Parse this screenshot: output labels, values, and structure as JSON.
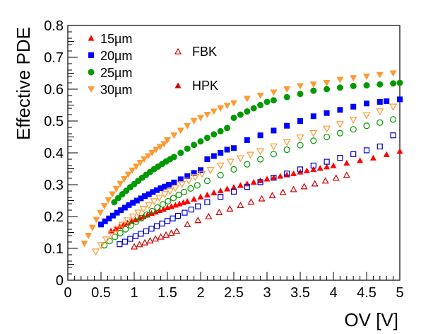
{
  "chart_data": {
    "type": "scatter",
    "title": "",
    "xlabel": "OV [V]",
    "ylabel": "Effective PDE",
    "xlim": [
      0,
      5
    ],
    "ylim": [
      0,
      0.8
    ],
    "xticks": [
      "0",
      "0.5",
      "1",
      "1.5",
      "2",
      "2.5",
      "3",
      "3.5",
      "4",
      "4.5",
      "5"
    ],
    "yticks": [
      "0",
      "0.1",
      "0.2",
      "0.3",
      "0.4",
      "0.5",
      "0.6",
      "0.7",
      "0.8"
    ],
    "grid": false,
    "legend": {
      "placement": "top-left",
      "pitch_entries": [
        {
          "label": "15µm",
          "color": "#ff0000"
        },
        {
          "label": "20µm",
          "color": "#0000ff"
        },
        {
          "label": "25µm",
          "color": "#009900"
        },
        {
          "label": "30µm",
          "color": "#ff9933"
        }
      ],
      "vendor_entries": [
        {
          "label": "FBK",
          "style": "open"
        },
        {
          "label": "HPK",
          "style": "filled"
        }
      ]
    },
    "series": [
      {
        "pitch": "15µm",
        "vendor": "HPK",
        "marker": "triangle-up",
        "filled": true,
        "color": "#ff0000",
        "x": [
          0.65,
          0.72,
          0.78,
          0.84,
          0.9,
          0.96,
          1.02,
          1.08,
          1.14,
          1.2,
          1.26,
          1.32,
          1.38,
          1.44,
          1.5,
          1.56,
          1.62,
          1.68,
          1.74,
          1.8,
          1.9,
          2.0,
          2.1,
          2.2,
          2.3,
          2.4,
          2.5,
          2.6,
          2.7,
          2.8,
          2.9,
          3.0,
          3.1,
          3.2,
          3.3,
          3.4,
          3.5,
          3.6,
          3.7,
          3.8,
          3.9,
          4.0,
          4.2,
          4.4,
          4.6,
          4.8,
          5.0
        ],
        "y": [
          0.155,
          0.162,
          0.168,
          0.175,
          0.18,
          0.185,
          0.19,
          0.196,
          0.2,
          0.205,
          0.21,
          0.214,
          0.219,
          0.223,
          0.228,
          0.232,
          0.236,
          0.24,
          0.244,
          0.248,
          0.255,
          0.262,
          0.268,
          0.275,
          0.281,
          0.287,
          0.292,
          0.298,
          0.303,
          0.308,
          0.313,
          0.318,
          0.322,
          0.327,
          0.331,
          0.335,
          0.34,
          0.344,
          0.348,
          0.352,
          0.356,
          0.36,
          0.368,
          0.376,
          0.384,
          0.395,
          0.405
        ]
      },
      {
        "pitch": "20µm",
        "vendor": "HPK",
        "marker": "square",
        "filled": true,
        "color": "#0000ff",
        "x": [
          0.5,
          0.56,
          0.62,
          0.68,
          0.74,
          0.8,
          0.86,
          0.92,
          0.98,
          1.04,
          1.1,
          1.16,
          1.22,
          1.28,
          1.34,
          1.4,
          1.46,
          1.52,
          1.6,
          1.7,
          1.8,
          1.9,
          2.0,
          2.1,
          2.2,
          2.3,
          2.4,
          2.5,
          2.7,
          2.9,
          3.1,
          3.3,
          3.5,
          3.7,
          3.9,
          4.1,
          4.3,
          4.5,
          4.7,
          4.8,
          5.0
        ],
        "y": [
          0.175,
          0.185,
          0.194,
          0.203,
          0.212,
          0.22,
          0.228,
          0.236,
          0.243,
          0.25,
          0.257,
          0.264,
          0.27,
          0.277,
          0.283,
          0.289,
          0.294,
          0.3,
          0.307,
          0.317,
          0.327,
          0.337,
          0.346,
          0.38,
          0.39,
          0.4,
          0.41,
          0.415,
          0.44,
          0.455,
          0.47,
          0.485,
          0.5,
          0.515,
          0.525,
          0.535,
          0.545,
          0.555,
          0.56,
          0.562,
          0.568
        ]
      },
      {
        "pitch": "25µm",
        "vendor": "HPK",
        "marker": "circle",
        "filled": true,
        "color": "#009900",
        "x": [
          0.7,
          0.76,
          0.82,
          0.88,
          0.94,
          1.0,
          1.06,
          1.12,
          1.18,
          1.24,
          1.3,
          1.36,
          1.42,
          1.48,
          1.54,
          1.6,
          1.7,
          1.8,
          1.9,
          2.0,
          2.1,
          2.2,
          2.3,
          2.4,
          2.5,
          2.6,
          2.7,
          2.8,
          2.9,
          3.0,
          3.1,
          3.3,
          3.5,
          3.7,
          3.9,
          4.1,
          4.3,
          4.5,
          4.7,
          4.9,
          5.0
        ],
        "y": [
          0.245,
          0.258,
          0.27,
          0.281,
          0.292,
          0.302,
          0.312,
          0.322,
          0.331,
          0.34,
          0.349,
          0.357,
          0.365,
          0.373,
          0.38,
          0.387,
          0.4,
          0.413,
          0.425,
          0.436,
          0.447,
          0.458,
          0.468,
          0.478,
          0.51,
          0.52,
          0.53,
          0.54,
          0.55,
          0.56,
          0.565,
          0.575,
          0.585,
          0.595,
          0.6,
          0.605,
          0.61,
          0.612,
          0.615,
          0.618,
          0.62
        ]
      },
      {
        "pitch": "30µm",
        "vendor": "HPK",
        "marker": "triangle-down",
        "filled": true,
        "color": "#ff9933",
        "x": [
          0.25,
          0.31,
          0.37,
          0.43,
          0.49,
          0.55,
          0.61,
          0.67,
          0.73,
          0.79,
          0.85,
          0.91,
          0.97,
          1.03,
          1.09,
          1.15,
          1.21,
          1.27,
          1.33,
          1.39,
          1.45,
          1.5,
          1.6,
          1.7,
          1.8,
          1.9,
          2.0,
          2.1,
          2.2,
          2.3,
          2.4,
          2.5,
          2.7,
          2.9,
          3.1,
          3.3,
          3.5,
          3.7,
          3.9,
          4.1,
          4.3,
          4.5,
          4.7,
          4.9
        ],
        "y": [
          0.115,
          0.14,
          0.165,
          0.19,
          0.212,
          0.233,
          0.252,
          0.27,
          0.287,
          0.303,
          0.318,
          0.332,
          0.345,
          0.357,
          0.369,
          0.38,
          0.39,
          0.4,
          0.41,
          0.419,
          0.428,
          0.44,
          0.455,
          0.47,
          0.485,
          0.5,
          0.51,
          0.52,
          0.53,
          0.54,
          0.548,
          0.556,
          0.57,
          0.58,
          0.59,
          0.6,
          0.61,
          0.615,
          0.62,
          0.63,
          0.635,
          0.64,
          0.645,
          0.65
        ]
      },
      {
        "pitch": "15µm",
        "vendor": "FBK",
        "marker": "triangle-up",
        "filled": false,
        "color": "#cc0000",
        "x": [
          1.0,
          1.08,
          1.16,
          1.24,
          1.32,
          1.4,
          1.48,
          1.56,
          1.64,
          1.8,
          1.96,
          2.12,
          2.28,
          2.44,
          2.6,
          2.76,
          2.92,
          3.08,
          3.24,
          3.4,
          3.56,
          3.72,
          3.88,
          4.04,
          4.2
        ],
        "y": [
          0.105,
          0.112,
          0.118,
          0.124,
          0.13,
          0.136,
          0.142,
          0.148,
          0.154,
          0.175,
          0.188,
          0.2,
          0.213,
          0.224,
          0.235,
          0.246,
          0.256,
          0.266,
          0.276,
          0.285,
          0.294,
          0.303,
          0.312,
          0.321,
          0.33
        ]
      },
      {
        "pitch": "20µm",
        "vendor": "FBK",
        "marker": "square",
        "filled": false,
        "color": "#0000cc",
        "x": [
          0.78,
          0.86,
          0.94,
          1.02,
          1.1,
          1.18,
          1.26,
          1.34,
          1.42,
          1.5,
          1.58,
          1.66,
          1.76,
          1.86,
          1.96,
          2.1,
          2.3,
          2.5,
          2.7,
          2.9,
          3.1,
          3.3,
          3.5,
          3.7,
          3.9,
          4.1,
          4.3,
          4.5,
          4.7,
          4.9
        ],
        "y": [
          0.113,
          0.121,
          0.13,
          0.138,
          0.146,
          0.154,
          0.162,
          0.17,
          0.178,
          0.186,
          0.194,
          0.202,
          0.212,
          0.222,
          0.232,
          0.245,
          0.262,
          0.278,
          0.293,
          0.308,
          0.322,
          0.335,
          0.348,
          0.36,
          0.372,
          0.384,
          0.396,
          0.408,
          0.42,
          0.455
        ]
      },
      {
        "pitch": "25µm",
        "vendor": "FBK",
        "marker": "circle",
        "filled": false,
        "color": "#009900",
        "x": [
          0.55,
          0.63,
          0.71,
          0.79,
          0.87,
          0.95,
          1.03,
          1.11,
          1.19,
          1.27,
          1.35,
          1.43,
          1.51,
          1.59,
          1.67,
          1.75,
          1.85,
          1.95,
          2.1,
          2.3,
          2.5,
          2.7,
          2.9,
          3.1,
          3.3,
          3.5,
          3.7,
          3.9,
          4.1,
          4.3,
          4.5,
          4.7,
          4.9
        ],
        "y": [
          0.11,
          0.123,
          0.136,
          0.148,
          0.16,
          0.172,
          0.184,
          0.195,
          0.206,
          0.217,
          0.228,
          0.238,
          0.248,
          0.258,
          0.268,
          0.277,
          0.288,
          0.298,
          0.312,
          0.33,
          0.348,
          0.364,
          0.38,
          0.396,
          0.41,
          0.424,
          0.438,
          0.45,
          0.462,
          0.474,
          0.485,
          0.495,
          0.505
        ]
      },
      {
        "pitch": "30µm",
        "vendor": "FBK",
        "marker": "triangle-down",
        "filled": false,
        "color": "#ff9933",
        "x": [
          0.42,
          0.5,
          0.58,
          0.66,
          0.74,
          0.82,
          0.9,
          0.98,
          1.06,
          1.14,
          1.22,
          1.3,
          1.38,
          1.46,
          1.54,
          1.62,
          1.72,
          1.82,
          1.92,
          2.02,
          2.15,
          2.3,
          2.45,
          2.6,
          2.75,
          2.9,
          3.1,
          3.3,
          3.5,
          3.7,
          3.9,
          4.1,
          4.3,
          4.5,
          4.7,
          4.9
        ],
        "y": [
          0.09,
          0.11,
          0.128,
          0.145,
          0.16,
          0.174,
          0.188,
          0.2,
          0.212,
          0.224,
          0.236,
          0.248,
          0.259,
          0.27,
          0.28,
          0.29,
          0.302,
          0.313,
          0.324,
          0.334,
          0.346,
          0.36,
          0.372,
          0.383,
          0.394,
          0.405,
          0.42,
          0.434,
          0.448,
          0.462,
          0.476,
          0.49,
          0.504,
          0.518,
          0.53,
          0.545
        ]
      }
    ]
  }
}
